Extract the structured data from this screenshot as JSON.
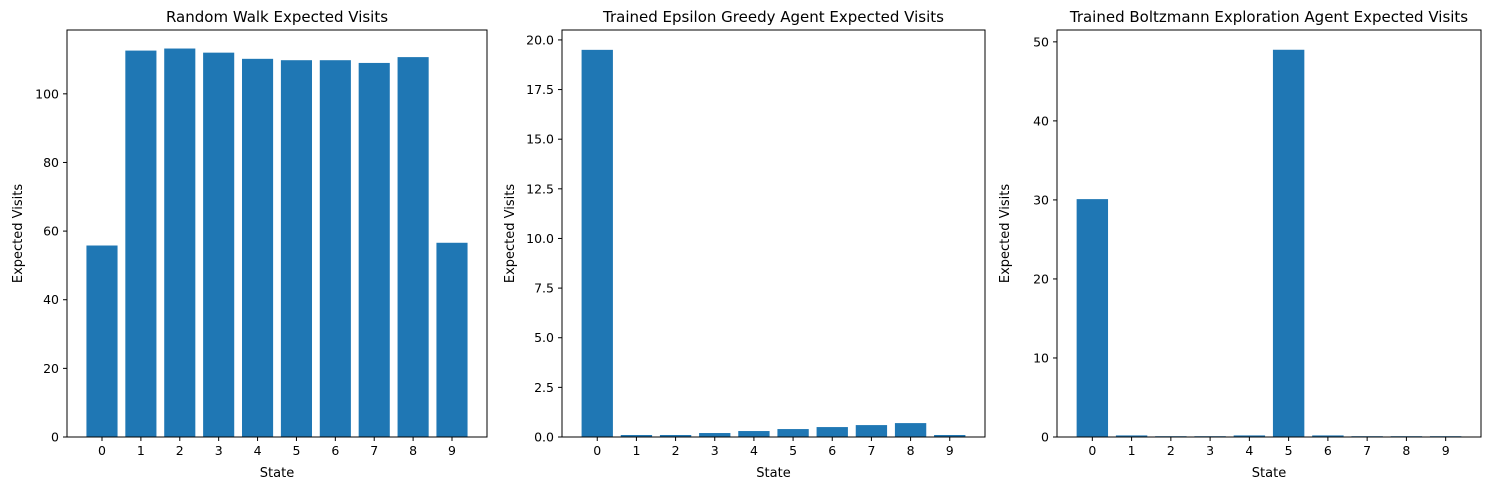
{
  "chart_data": [
    {
      "type": "bar",
      "title": "Random Walk Expected Visits",
      "xlabel": "State",
      "ylabel": "Expected Visits",
      "categories": [
        "0",
        "1",
        "2",
        "3",
        "4",
        "5",
        "6",
        "7",
        "8",
        "9"
      ],
      "values": [
        55.8,
        112.6,
        113.2,
        112.0,
        110.2,
        109.8,
        109.8,
        109.0,
        110.7,
        56.6
      ],
      "ylim": [
        0,
        118.6
      ],
      "yticks": [
        0,
        20,
        40,
        60,
        80,
        100
      ],
      "ytick_labels": [
        "0",
        "20",
        "40",
        "60",
        "80",
        "100"
      ],
      "bar_color": "#1f77b4",
      "grid": false
    },
    {
      "type": "bar",
      "title": "Trained Epsilon Greedy Agent Expected Visits",
      "xlabel": "State",
      "ylabel": "Expected Visits",
      "categories": [
        "0",
        "1",
        "2",
        "3",
        "4",
        "5",
        "6",
        "7",
        "8",
        "9"
      ],
      "values": [
        19.5,
        0.1,
        0.1,
        0.2,
        0.3,
        0.4,
        0.5,
        0.6,
        0.7,
        0.1
      ],
      "ylim": [
        0,
        20.5
      ],
      "yticks": [
        0,
        2.5,
        5,
        7.5,
        10,
        12.5,
        15,
        17.5,
        20
      ],
      "ytick_labels": [
        "0.0",
        "2.5",
        "5.0",
        "7.5",
        "10.0",
        "12.5",
        "15.0",
        "17.5",
        "20.0"
      ],
      "bar_color": "#1f77b4",
      "grid": false
    },
    {
      "type": "bar",
      "title": "Trained Boltzmann Exploration Agent Expected Visits",
      "xlabel": "State",
      "ylabel": "Expected Visits",
      "categories": [
        "0",
        "1",
        "2",
        "3",
        "4",
        "5",
        "6",
        "7",
        "8",
        "9"
      ],
      "values": [
        30.1,
        0.2,
        0.1,
        0.1,
        0.2,
        49.0,
        0.2,
        0.1,
        0.1,
        0.1
      ],
      "ylim": [
        0,
        51.5
      ],
      "yticks": [
        0,
        10,
        20,
        30,
        40,
        50
      ],
      "ytick_labels": [
        "0",
        "10",
        "20",
        "30",
        "40",
        "50"
      ],
      "bar_color": "#1f77b4",
      "grid": false
    }
  ]
}
